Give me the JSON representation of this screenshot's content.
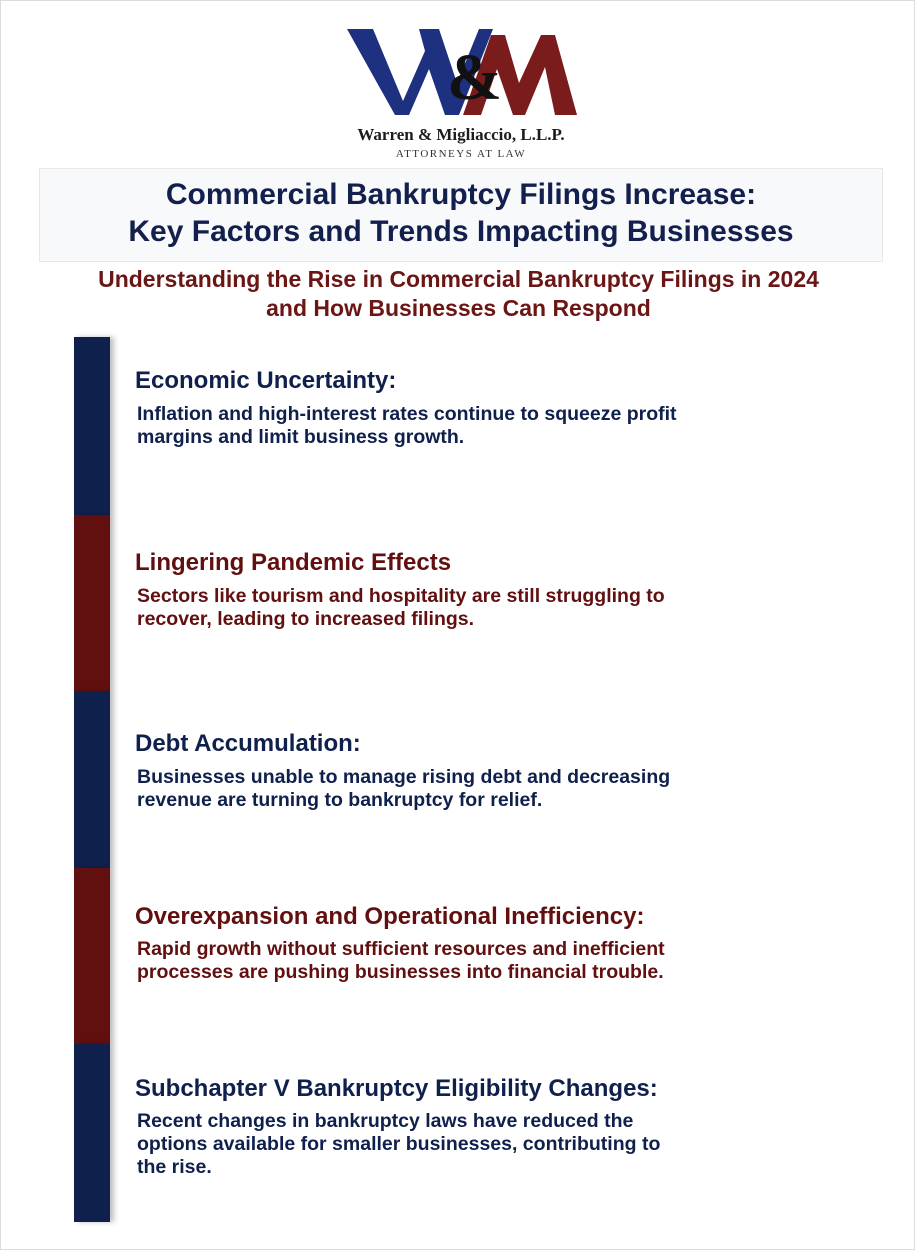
{
  "logo": {
    "monogram": "W&M",
    "firm_name": "Warren & Migliaccio, L.L.P.",
    "tagline": "ATTORNEYS AT LAW",
    "colors": {
      "navy": "#1e3080",
      "maroon": "#7a1c1c",
      "ampersand": "#111111"
    }
  },
  "title": {
    "line1": "Commercial Bankruptcy Filings Increase:",
    "line2": "Key Factors and Trends Impacting Businesses"
  },
  "subtitle": {
    "line1": "Understanding the Rise in Commercial Bankruptcy Filings in 2024",
    "line2": "and How Businesses Can Respond"
  },
  "colors": {
    "navy": "#10204d",
    "maroon": "#620f0f",
    "title": "#13204d",
    "subtitle": "#6b1515"
  },
  "factors": [
    {
      "heading": "Economic Uncertainty:",
      "body": [
        "Inflation and high-interest rates continue to squeeze profit",
        "margins and limit business growth."
      ],
      "color": "navy"
    },
    {
      "heading": "Lingering Pandemic Effects",
      "body": [
        "Sectors like tourism and hospitality are still struggling to",
        "recover, leading to increased filings."
      ],
      "color": "maroon"
    },
    {
      "heading": "Debt Accumulation:",
      "body": [
        "Businesses unable to manage rising debt and decreasing",
        "revenue are turning to bankruptcy for relief."
      ],
      "color": "navy"
    },
    {
      "heading": "Overexpansion and Operational Inefficiency:",
      "body": [
        "Rapid growth without sufficient resources and inefficient",
        "processes are pushing businesses into financial trouble."
      ],
      "color": "maroon"
    },
    {
      "heading": "Subchapter V Bankruptcy Eligibility Changes:",
      "body": [
        "Recent changes in bankruptcy laws have reduced the",
        "options available for smaller businesses, contributing to",
        "the rise."
      ],
      "color": "navy"
    }
  ]
}
